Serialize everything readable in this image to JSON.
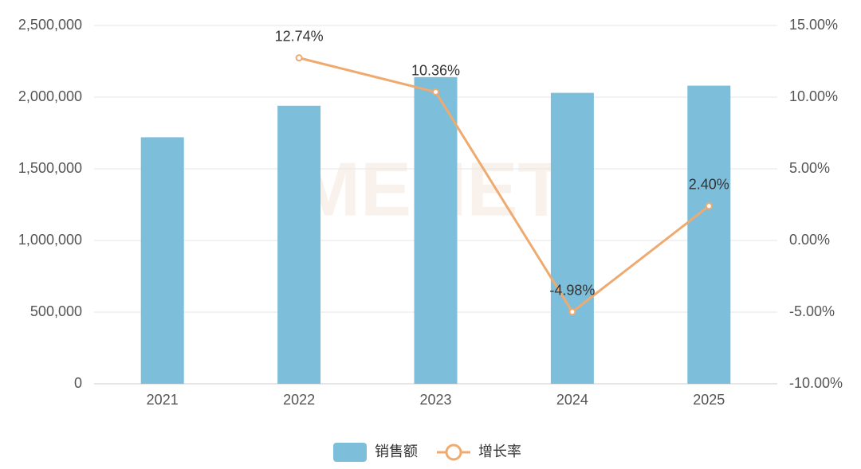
{
  "chart_data": {
    "type": "bar-line",
    "watermark": "MENET",
    "categories": [
      "2021",
      "2022",
      "2023",
      "2024",
      "2025"
    ],
    "series": [
      {
        "name": "销售额",
        "type": "bar",
        "color": "#7dbedb",
        "values": [
          1720000,
          1940000,
          2140000,
          2030000,
          2080000
        ]
      },
      {
        "name": "增长率",
        "type": "line",
        "axis": "y2",
        "color": "#eeaa6f",
        "values": [
          null,
          12.74,
          10.36,
          -4.98,
          2.4
        ],
        "value_labels": [
          null,
          "12.74%",
          "10.36%",
          "-4.98%",
          "2.40%"
        ]
      }
    ],
    "ylim": [
      0,
      2500000
    ],
    "yticks": [
      0,
      {
        "value": 500000,
        "label": "500,000"
      },
      {
        "value": 1000000,
        "label": "1,000,000"
      },
      {
        "value": 1500000,
        "label": "1,500,000"
      },
      {
        "value": 2000000,
        "label": "2,000,000"
      },
      {
        "value": 2500000,
        "label": "2,500,000"
      }
    ],
    "y2lim": [
      -10,
      15
    ],
    "y2ticks": [
      {
        "value": -10,
        "label": "-10.00%"
      },
      {
        "value": -5,
        "label": "-5.00%"
      },
      {
        "value": 0,
        "label": "0.00%"
      },
      {
        "value": 5,
        "label": "5.00%"
      },
      {
        "value": 10,
        "label": "10.00%"
      },
      {
        "value": 15,
        "label": "15.00%"
      }
    ],
    "grid": true
  }
}
